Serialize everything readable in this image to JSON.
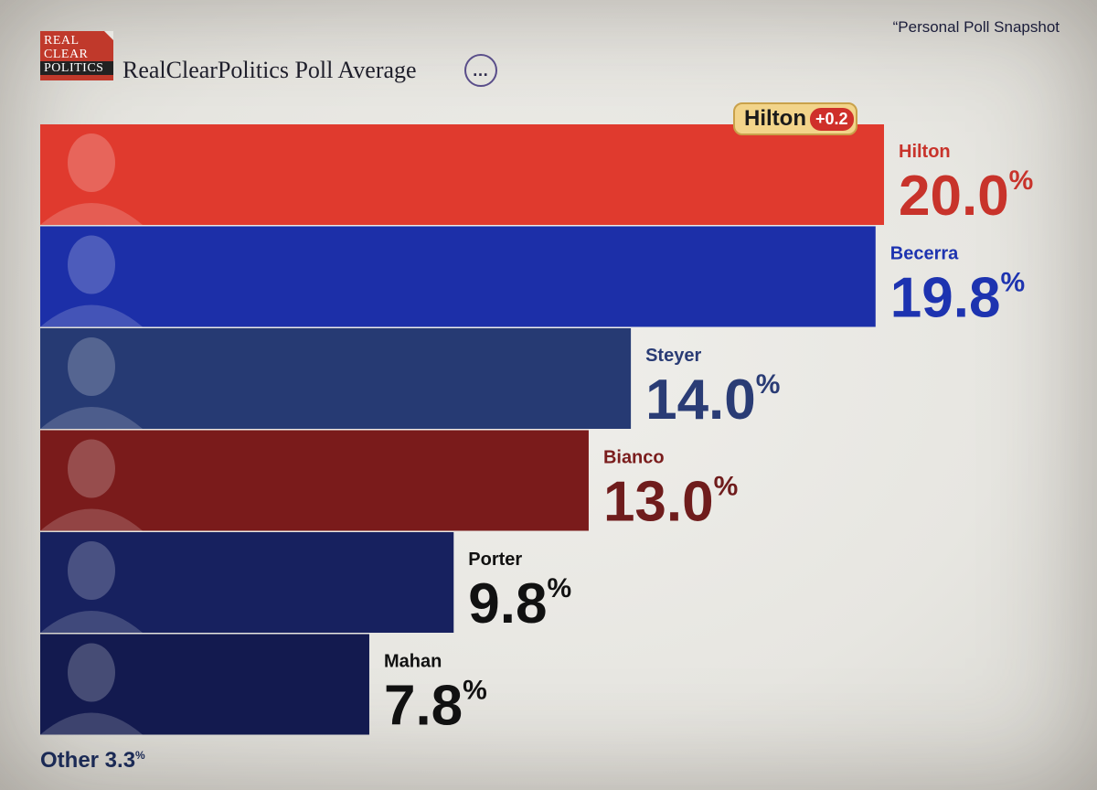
{
  "header": {
    "logo_lines": [
      "REAL",
      "CLEAR",
      "POLITICS"
    ],
    "title": "RealClearPolitics Poll Average",
    "more_icon": "…",
    "snapshot_note": "“Personal Poll Snapshot"
  },
  "badge": {
    "name": "Hilton",
    "change": "+0.2"
  },
  "other_label": "Other 3.3",
  "other_suffix": "%",
  "chart_data": {
    "type": "bar",
    "orientation": "horizontal",
    "categories": [
      "Hilton",
      "Becerra",
      "Steyer",
      "Bianco",
      "Porter",
      "Mahan"
    ],
    "values": [
      20.0,
      19.8,
      14.0,
      13.0,
      9.8,
      7.8
    ],
    "value_labels": [
      "20.0",
      "19.8",
      "14.0",
      "13.0",
      "9.8",
      "7.8"
    ],
    "value_suffix": "%",
    "bar_colors": [
      "#e03a2e",
      "#1c2fa8",
      "#263a73",
      "#7a1b1b",
      "#17215f",
      "#131a4f"
    ],
    "label_colors": [
      "#c8332b",
      "#1d33b0",
      "#2a3c75",
      "#7a1d1d",
      "#111111",
      "#111111"
    ],
    "value_colors": [
      "#c8332b",
      "#1d33b0",
      "#2a3c75",
      "#6f1c1c",
      "#111111",
      "#111111"
    ]
  }
}
